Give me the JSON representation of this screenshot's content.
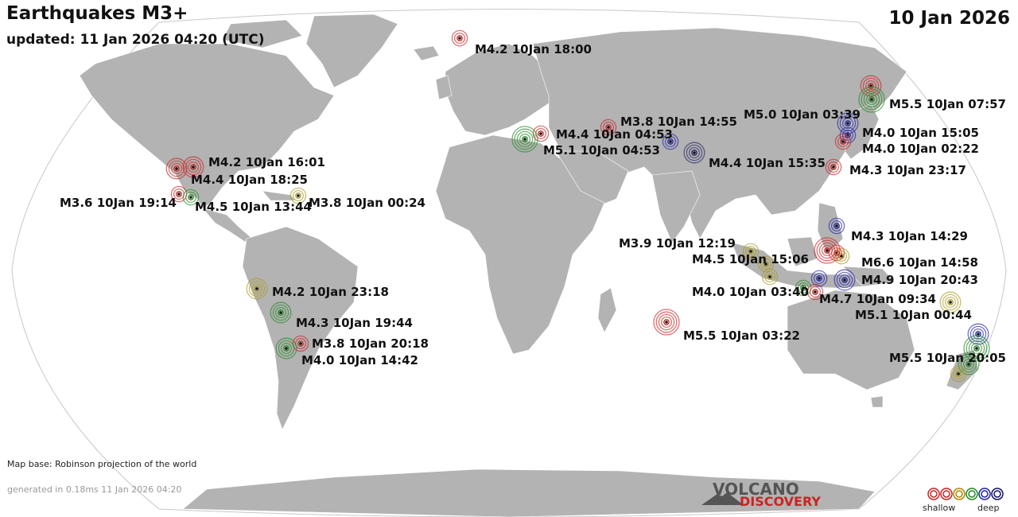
{
  "title": "Earthquakes M3+",
  "updated": "updated: 11 Jan 2026 04:20 (UTC)",
  "date": "10 Jan 2026",
  "map_base": "Map base: Robinson projection of the world",
  "generated": "generated in 0.18ms 11 Jan 2026 04:20",
  "logo": {
    "line1": "VOLCANO",
    "line2": "DISCOVERY"
  },
  "legend": {
    "shallow": "shallow",
    "deep": "deep",
    "colors": [
      "#cc2222",
      "#cc2222",
      "#aa8800",
      "#228822",
      "#2222aa",
      "#111166"
    ]
  },
  "depth_colors": {
    "shallow": "#cc2222",
    "mid": "#228822",
    "intermediate": "#aa9922",
    "deep": "#2222aa",
    "very_deep": "#222266"
  },
  "earthquakes": [
    {
      "label": "M4.2 10Jan 18:00",
      "depth": "shallow",
      "size": 5
    },
    {
      "label": "M5.5 10Jan 07:57",
      "depth": "mid",
      "size": 7
    },
    {
      "label": "M3.8 10Jan 14:55",
      "depth": "shallow",
      "size": 4
    },
    {
      "label": "M5.0 10Jan 03:39",
      "depth": "deep",
      "size": 6
    },
    {
      "label": "M4.4 10Jan 04:53",
      "depth": "shallow",
      "size": 5
    },
    {
      "label": "M4.0 10Jan 15:05",
      "depth": "deep",
      "size": 5
    },
    {
      "label": "M5.1 10Jan 04:53",
      "depth": "mid",
      "size": 7
    },
    {
      "label": "M4.0 10Jan 02:22",
      "depth": "shallow",
      "size": 5
    },
    {
      "label": "M4.4 10Jan 15:35",
      "depth": "very_deep",
      "size": 6
    },
    {
      "label": "M4.3 10Jan 23:17",
      "depth": "shallow",
      "size": 5
    },
    {
      "label": "M4.2 10Jan 16:01",
      "depth": "shallow",
      "size": 6
    },
    {
      "label": "M4.4 10Jan 18:25",
      "depth": "shallow",
      "size": 6
    },
    {
      "label": "M3.6 10Jan 19:14",
      "depth": "shallow",
      "size": 5
    },
    {
      "label": "M4.5 10Jan 13:44",
      "depth": "mid",
      "size": 5
    },
    {
      "label": "M3.8 10Jan 00:24",
      "depth": "intermediate",
      "size": 4
    },
    {
      "label": "M4.3 10Jan 14:29",
      "depth": "deep",
      "size": 5
    },
    {
      "label": "M3.9 10Jan 12:19",
      "depth": "intermediate",
      "size": 4
    },
    {
      "label": "M4.5 10Jan 15:06",
      "depth": "intermediate",
      "size": 5
    },
    {
      "label": "M6.6 10Jan 14:58",
      "depth": "shallow",
      "size": 8
    },
    {
      "label": "M4.9 10Jan 20:43",
      "depth": "deep",
      "size": 6
    },
    {
      "label": "M4.0 10Jan 03:40",
      "depth": "mid",
      "size": 5
    },
    {
      "label": "M4.7 10Jan 09:34",
      "depth": "shallow",
      "size": 5
    },
    {
      "label": "M5.1 10Jan 00:44",
      "depth": "intermediate",
      "size": 6
    },
    {
      "label": "M4.2 10Jan 23:18",
      "depth": "intermediate",
      "size": 6
    },
    {
      "label": "M4.3 10Jan 19:44",
      "depth": "mid",
      "size": 6
    },
    {
      "label": "M3.8 10Jan 20:18",
      "depth": "shallow",
      "size": 4
    },
    {
      "label": "M4.0 10Jan 14:42",
      "depth": "mid",
      "size": 6
    },
    {
      "label": "M5.5 10Jan 03:22",
      "depth": "shallow",
      "size": 7
    },
    {
      "label": "M5.5 10Jan 20:05",
      "depth": "mid",
      "size": 7
    }
  ]
}
